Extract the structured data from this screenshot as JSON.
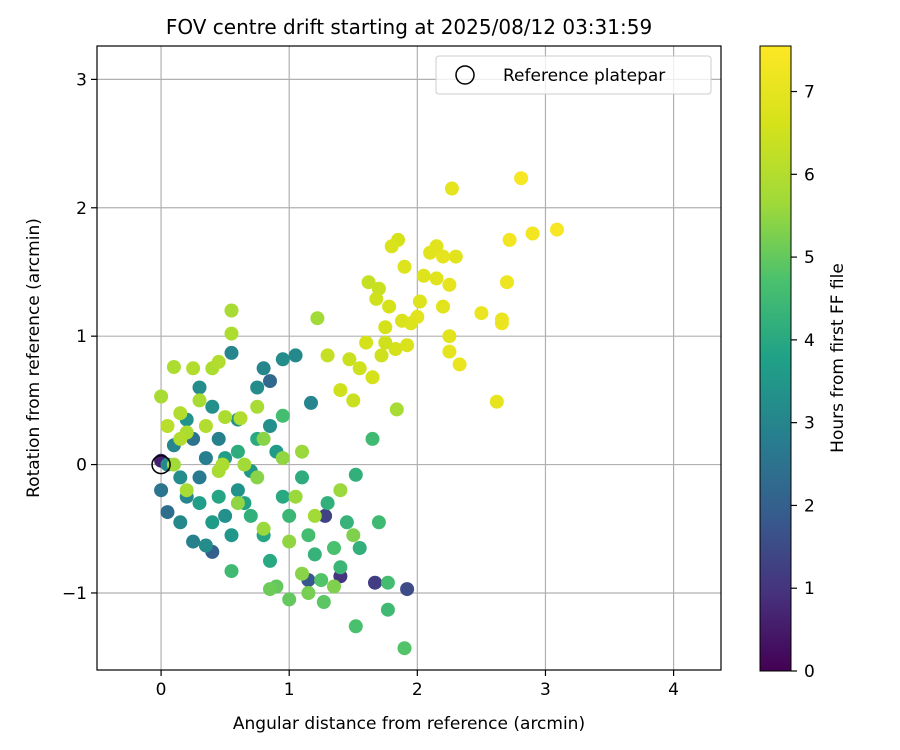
{
  "chart_data": {
    "type": "scatter",
    "title": "FOV centre drift starting at 2025/08/12 03:31:59",
    "xlabel": "Angular distance from reference (arcmin)",
    "ylabel": "Rotation from reference (arcmin)",
    "xlim": [
      -0.5,
      4.37
    ],
    "ylim": [
      -1.6,
      3.26
    ],
    "xticks": [
      "0",
      "1",
      "2",
      "3",
      "4"
    ],
    "yticks": [
      "−1",
      "0",
      "1",
      "2",
      "3"
    ],
    "grid": true,
    "legend": {
      "position": "top-right",
      "entries": [
        "Reference platepar"
      ]
    },
    "colorbar": {
      "label": "Hours from first FF file",
      "range": [
        0,
        7.55
      ],
      "ticks": [
        "0",
        "1",
        "2",
        "3",
        "4",
        "5",
        "6",
        "7"
      ],
      "colormap": "viridis"
    },
    "reference_point": {
      "x": 0,
      "y": 0
    },
    "series": [
      {
        "points": [
          {
            "x": 0.0,
            "y": 0.03,
            "c": 0.6
          },
          {
            "x": 1.4,
            "y": -0.87,
            "c": 1.0
          },
          {
            "x": 1.67,
            "y": -0.92,
            "c": 1.2
          },
          {
            "x": 1.92,
            "y": -0.97,
            "c": 1.5
          },
          {
            "x": 1.28,
            "y": -0.4,
            "c": 1.3
          },
          {
            "x": 1.15,
            "y": -0.9,
            "c": 1.8
          },
          {
            "x": 0.85,
            "y": 0.65,
            "c": 2.2
          },
          {
            "x": 0.4,
            "y": -0.68,
            "c": 2.0
          },
          {
            "x": 0.05,
            "y": -0.37,
            "c": 2.4
          },
          {
            "x": 0.0,
            "y": -0.2,
            "c": 2.6
          },
          {
            "x": 0.25,
            "y": 0.2,
            "c": 2.5
          },
          {
            "x": 0.3,
            "y": -0.1,
            "c": 2.7
          },
          {
            "x": 0.55,
            "y": 0.87,
            "c": 3.0
          },
          {
            "x": 1.05,
            "y": 0.85,
            "c": 3.1
          },
          {
            "x": 0.8,
            "y": 0.75,
            "c": 3.0
          },
          {
            "x": 0.95,
            "y": 0.82,
            "c": 3.2
          },
          {
            "x": 1.17,
            "y": 0.48,
            "c": 3.0
          },
          {
            "x": 0.75,
            "y": 0.6,
            "c": 3.2
          },
          {
            "x": 0.85,
            "y": 0.3,
            "c": 3.3
          },
          {
            "x": 0.6,
            "y": 0.35,
            "c": 3.4
          },
          {
            "x": 0.45,
            "y": 0.2,
            "c": 2.9
          },
          {
            "x": 0.35,
            "y": 0.05,
            "c": 2.8
          },
          {
            "x": 0.2,
            "y": -0.25,
            "c": 3.0
          },
          {
            "x": 0.15,
            "y": -0.45,
            "c": 3.1
          },
          {
            "x": 0.25,
            "y": -0.6,
            "c": 2.9
          },
          {
            "x": 0.35,
            "y": -0.63,
            "c": 3.2
          },
          {
            "x": 0.5,
            "y": -0.4,
            "c": 3.3
          },
          {
            "x": 0.6,
            "y": -0.2,
            "c": 3.4
          },
          {
            "x": 0.7,
            "y": -0.05,
            "c": 3.5
          },
          {
            "x": 0.9,
            "y": 0.1,
            "c": 3.6
          },
          {
            "x": 0.4,
            "y": 0.45,
            "c": 3.3
          },
          {
            "x": 0.3,
            "y": 0.6,
            "c": 3.2
          },
          {
            "x": 0.2,
            "y": 0.35,
            "c": 3.4
          },
          {
            "x": 0.1,
            "y": 0.15,
            "c": 3.0
          },
          {
            "x": 0.05,
            "y": 0.0,
            "c": 3.1
          },
          {
            "x": 0.15,
            "y": -0.1,
            "c": 3.2
          },
          {
            "x": 0.5,
            "y": 0.05,
            "c": 3.7
          },
          {
            "x": 0.65,
            "y": -0.3,
            "c": 3.8
          },
          {
            "x": 0.8,
            "y": -0.55,
            "c": 3.9
          },
          {
            "x": 0.95,
            "y": -0.25,
            "c": 4.0
          },
          {
            "x": 1.1,
            "y": -0.1,
            "c": 4.1
          },
          {
            "x": 1.3,
            "y": -0.3,
            "c": 4.2
          },
          {
            "x": 1.45,
            "y": -0.45,
            "c": 4.3
          },
          {
            "x": 1.55,
            "y": -0.65,
            "c": 4.2
          },
          {
            "x": 1.4,
            "y": -0.8,
            "c": 4.4
          },
          {
            "x": 1.2,
            "y": -0.7,
            "c": 4.3
          },
          {
            "x": 1.65,
            "y": 0.2,
            "c": 4.5
          },
          {
            "x": 1.52,
            "y": -0.08,
            "c": 4.2
          },
          {
            "x": 0.55,
            "y": -0.83,
            "c": 4.5
          },
          {
            "x": 0.95,
            "y": 0.38,
            "c": 4.6
          },
          {
            "x": 0.75,
            "y": 0.2,
            "c": 4.0
          },
          {
            "x": 0.45,
            "y": -0.25,
            "c": 3.9
          },
          {
            "x": 0.85,
            "y": -0.75,
            "c": 4.0
          },
          {
            "x": 1.7,
            "y": -0.45,
            "c": 4.5
          },
          {
            "x": 1.77,
            "y": -0.92,
            "c": 4.6
          },
          {
            "x": 1.77,
            "y": -1.13,
            "c": 4.5
          },
          {
            "x": 1.52,
            "y": -1.26,
            "c": 4.7
          },
          {
            "x": 1.9,
            "y": -1.43,
            "c": 4.8
          },
          {
            "x": 1.27,
            "y": -1.07,
            "c": 4.9
          },
          {
            "x": 1.0,
            "y": -1.05,
            "c": 5.0
          },
          {
            "x": 0.4,
            "y": -0.45,
            "c": 3.6
          },
          {
            "x": 0.55,
            "y": -0.55,
            "c": 3.5
          },
          {
            "x": 0.3,
            "y": -0.3,
            "c": 3.7
          },
          {
            "x": 0.6,
            "y": 0.1,
            "c": 4.1
          },
          {
            "x": 0.7,
            "y": -0.4,
            "c": 4.2
          },
          {
            "x": 1.0,
            "y": -0.4,
            "c": 4.4
          },
          {
            "x": 1.15,
            "y": -0.55,
            "c": 4.6
          },
          {
            "x": 1.35,
            "y": -0.65,
            "c": 4.7
          },
          {
            "x": 1.25,
            "y": -0.9,
            "c": 4.8
          },
          {
            "x": 0.9,
            "y": -0.95,
            "c": 5.0
          },
          {
            "x": 0.85,
            "y": -0.97,
            "c": 5.1
          },
          {
            "x": 1.15,
            "y": -1.0,
            "c": 5.2
          },
          {
            "x": 1.35,
            "y": -0.95,
            "c": 5.3
          },
          {
            "x": 1.1,
            "y": -0.85,
            "c": 5.4
          },
          {
            "x": 1.0,
            "y": -0.6,
            "c": 5.5
          },
          {
            "x": 0.8,
            "y": -0.5,
            "c": 5.6
          },
          {
            "x": 0.6,
            "y": -0.3,
            "c": 5.5
          },
          {
            "x": 0.75,
            "y": -0.1,
            "c": 5.4
          },
          {
            "x": 1.05,
            "y": -0.25,
            "c": 5.6
          },
          {
            "x": 1.2,
            "y": -0.4,
            "c": 5.7
          },
          {
            "x": 1.4,
            "y": -0.2,
            "c": 5.6
          },
          {
            "x": 1.5,
            "y": -0.55,
            "c": 5.3
          },
          {
            "x": 0.8,
            "y": 0.2,
            "c": 5.4
          },
          {
            "x": 0.95,
            "y": 0.05,
            "c": 5.5
          },
          {
            "x": 1.1,
            "y": 0.1,
            "c": 5.6
          },
          {
            "x": 0.65,
            "y": 0.0,
            "c": 5.7
          },
          {
            "x": 0.45,
            "y": -0.05,
            "c": 5.8
          },
          {
            "x": 0.2,
            "y": 0.25,
            "c": 5.9
          },
          {
            "x": 0.15,
            "y": 0.4,
            "c": 6.0
          },
          {
            "x": 0.3,
            "y": 0.5,
            "c": 5.8
          },
          {
            "x": 0.4,
            "y": 0.75,
            "c": 5.9
          },
          {
            "x": 0.55,
            "y": 1.2,
            "c": 5.8
          },
          {
            "x": 0.55,
            "y": 1.02,
            "c": 5.9
          },
          {
            "x": 0.25,
            "y": 0.75,
            "c": 6.0
          },
          {
            "x": 0.1,
            "y": 0.76,
            "c": 5.9
          },
          {
            "x": 0.0,
            "y": 0.53,
            "c": 5.8
          },
          {
            "x": 0.1,
            "y": 0.0,
            "c": 5.7
          },
          {
            "x": 0.2,
            "y": -0.2,
            "c": 5.8
          },
          {
            "x": 0.35,
            "y": 0.3,
            "c": 6.0
          },
          {
            "x": 0.5,
            "y": 0.37,
            "c": 5.9
          },
          {
            "x": 0.75,
            "y": 0.45,
            "c": 5.8
          },
          {
            "x": 1.22,
            "y": 1.14,
            "c": 5.7
          },
          {
            "x": 1.84,
            "y": 0.43,
            "c": 5.8
          },
          {
            "x": 0.62,
            "y": 0.36,
            "c": 6.0
          },
          {
            "x": 0.45,
            "y": 0.8,
            "c": 6.0
          },
          {
            "x": 0.05,
            "y": 0.3,
            "c": 6.1
          },
          {
            "x": 0.15,
            "y": 0.2,
            "c": 6.0
          },
          {
            "x": 0.48,
            "y": 0.0,
            "c": 5.9
          },
          {
            "x": 1.3,
            "y": 0.85,
            "c": 6.3
          },
          {
            "x": 1.47,
            "y": 0.82,
            "c": 6.4
          },
          {
            "x": 1.4,
            "y": 0.58,
            "c": 6.5
          },
          {
            "x": 1.5,
            "y": 0.5,
            "c": 6.4
          },
          {
            "x": 1.55,
            "y": 0.75,
            "c": 6.5
          },
          {
            "x": 1.62,
            "y": 1.42,
            "c": 6.3
          },
          {
            "x": 1.7,
            "y": 1.37,
            "c": 6.4
          },
          {
            "x": 1.65,
            "y": 0.68,
            "c": 6.6
          },
          {
            "x": 1.72,
            "y": 0.85,
            "c": 6.5
          },
          {
            "x": 1.83,
            "y": 0.9,
            "c": 6.6
          },
          {
            "x": 1.88,
            "y": 1.12,
            "c": 6.7
          },
          {
            "x": 1.85,
            "y": 1.75,
            "c": 6.6
          },
          {
            "x": 1.8,
            "y": 1.7,
            "c": 6.7
          },
          {
            "x": 1.9,
            "y": 1.54,
            "c": 6.8
          },
          {
            "x": 1.78,
            "y": 1.23,
            "c": 6.6
          },
          {
            "x": 2.05,
            "y": 1.47,
            "c": 6.8
          },
          {
            "x": 2.1,
            "y": 1.65,
            "c": 6.9
          },
          {
            "x": 2.15,
            "y": 1.7,
            "c": 6.9
          },
          {
            "x": 2.2,
            "y": 1.62,
            "c": 7.0
          },
          {
            "x": 2.27,
            "y": 2.15,
            "c": 7.0
          },
          {
            "x": 2.3,
            "y": 1.62,
            "c": 6.9
          },
          {
            "x": 2.15,
            "y": 1.45,
            "c": 6.9
          },
          {
            "x": 2.25,
            "y": 1.4,
            "c": 7.0
          },
          {
            "x": 2.2,
            "y": 1.23,
            "c": 6.9
          },
          {
            "x": 2.02,
            "y": 1.27,
            "c": 6.8
          },
          {
            "x": 2.0,
            "y": 1.15,
            "c": 6.9
          },
          {
            "x": 2.25,
            "y": 1.0,
            "c": 6.9
          },
          {
            "x": 2.25,
            "y": 0.88,
            "c": 7.0
          },
          {
            "x": 2.33,
            "y": 0.78,
            "c": 7.1
          },
          {
            "x": 2.5,
            "y": 1.18,
            "c": 7.1
          },
          {
            "x": 2.62,
            "y": 0.49,
            "c": 7.0
          },
          {
            "x": 2.66,
            "y": 1.1,
            "c": 7.2
          },
          {
            "x": 2.66,
            "y": 1.13,
            "c": 7.1
          },
          {
            "x": 2.7,
            "y": 1.42,
            "c": 7.2
          },
          {
            "x": 2.72,
            "y": 1.75,
            "c": 7.3
          },
          {
            "x": 2.81,
            "y": 2.23,
            "c": 7.4
          },
          {
            "x": 2.9,
            "y": 1.8,
            "c": 7.3
          },
          {
            "x": 3.09,
            "y": 1.83,
            "c": 7.4
          },
          {
            "x": 1.95,
            "y": 1.1,
            "c": 6.8
          },
          {
            "x": 1.92,
            "y": 0.93,
            "c": 6.7
          },
          {
            "x": 1.75,
            "y": 1.07,
            "c": 6.6
          },
          {
            "x": 1.68,
            "y": 1.29,
            "c": 6.5
          },
          {
            "x": 1.6,
            "y": 0.95,
            "c": 6.6
          },
          {
            "x": 1.75,
            "y": 0.95,
            "c": 6.5
          }
        ]
      }
    ]
  }
}
